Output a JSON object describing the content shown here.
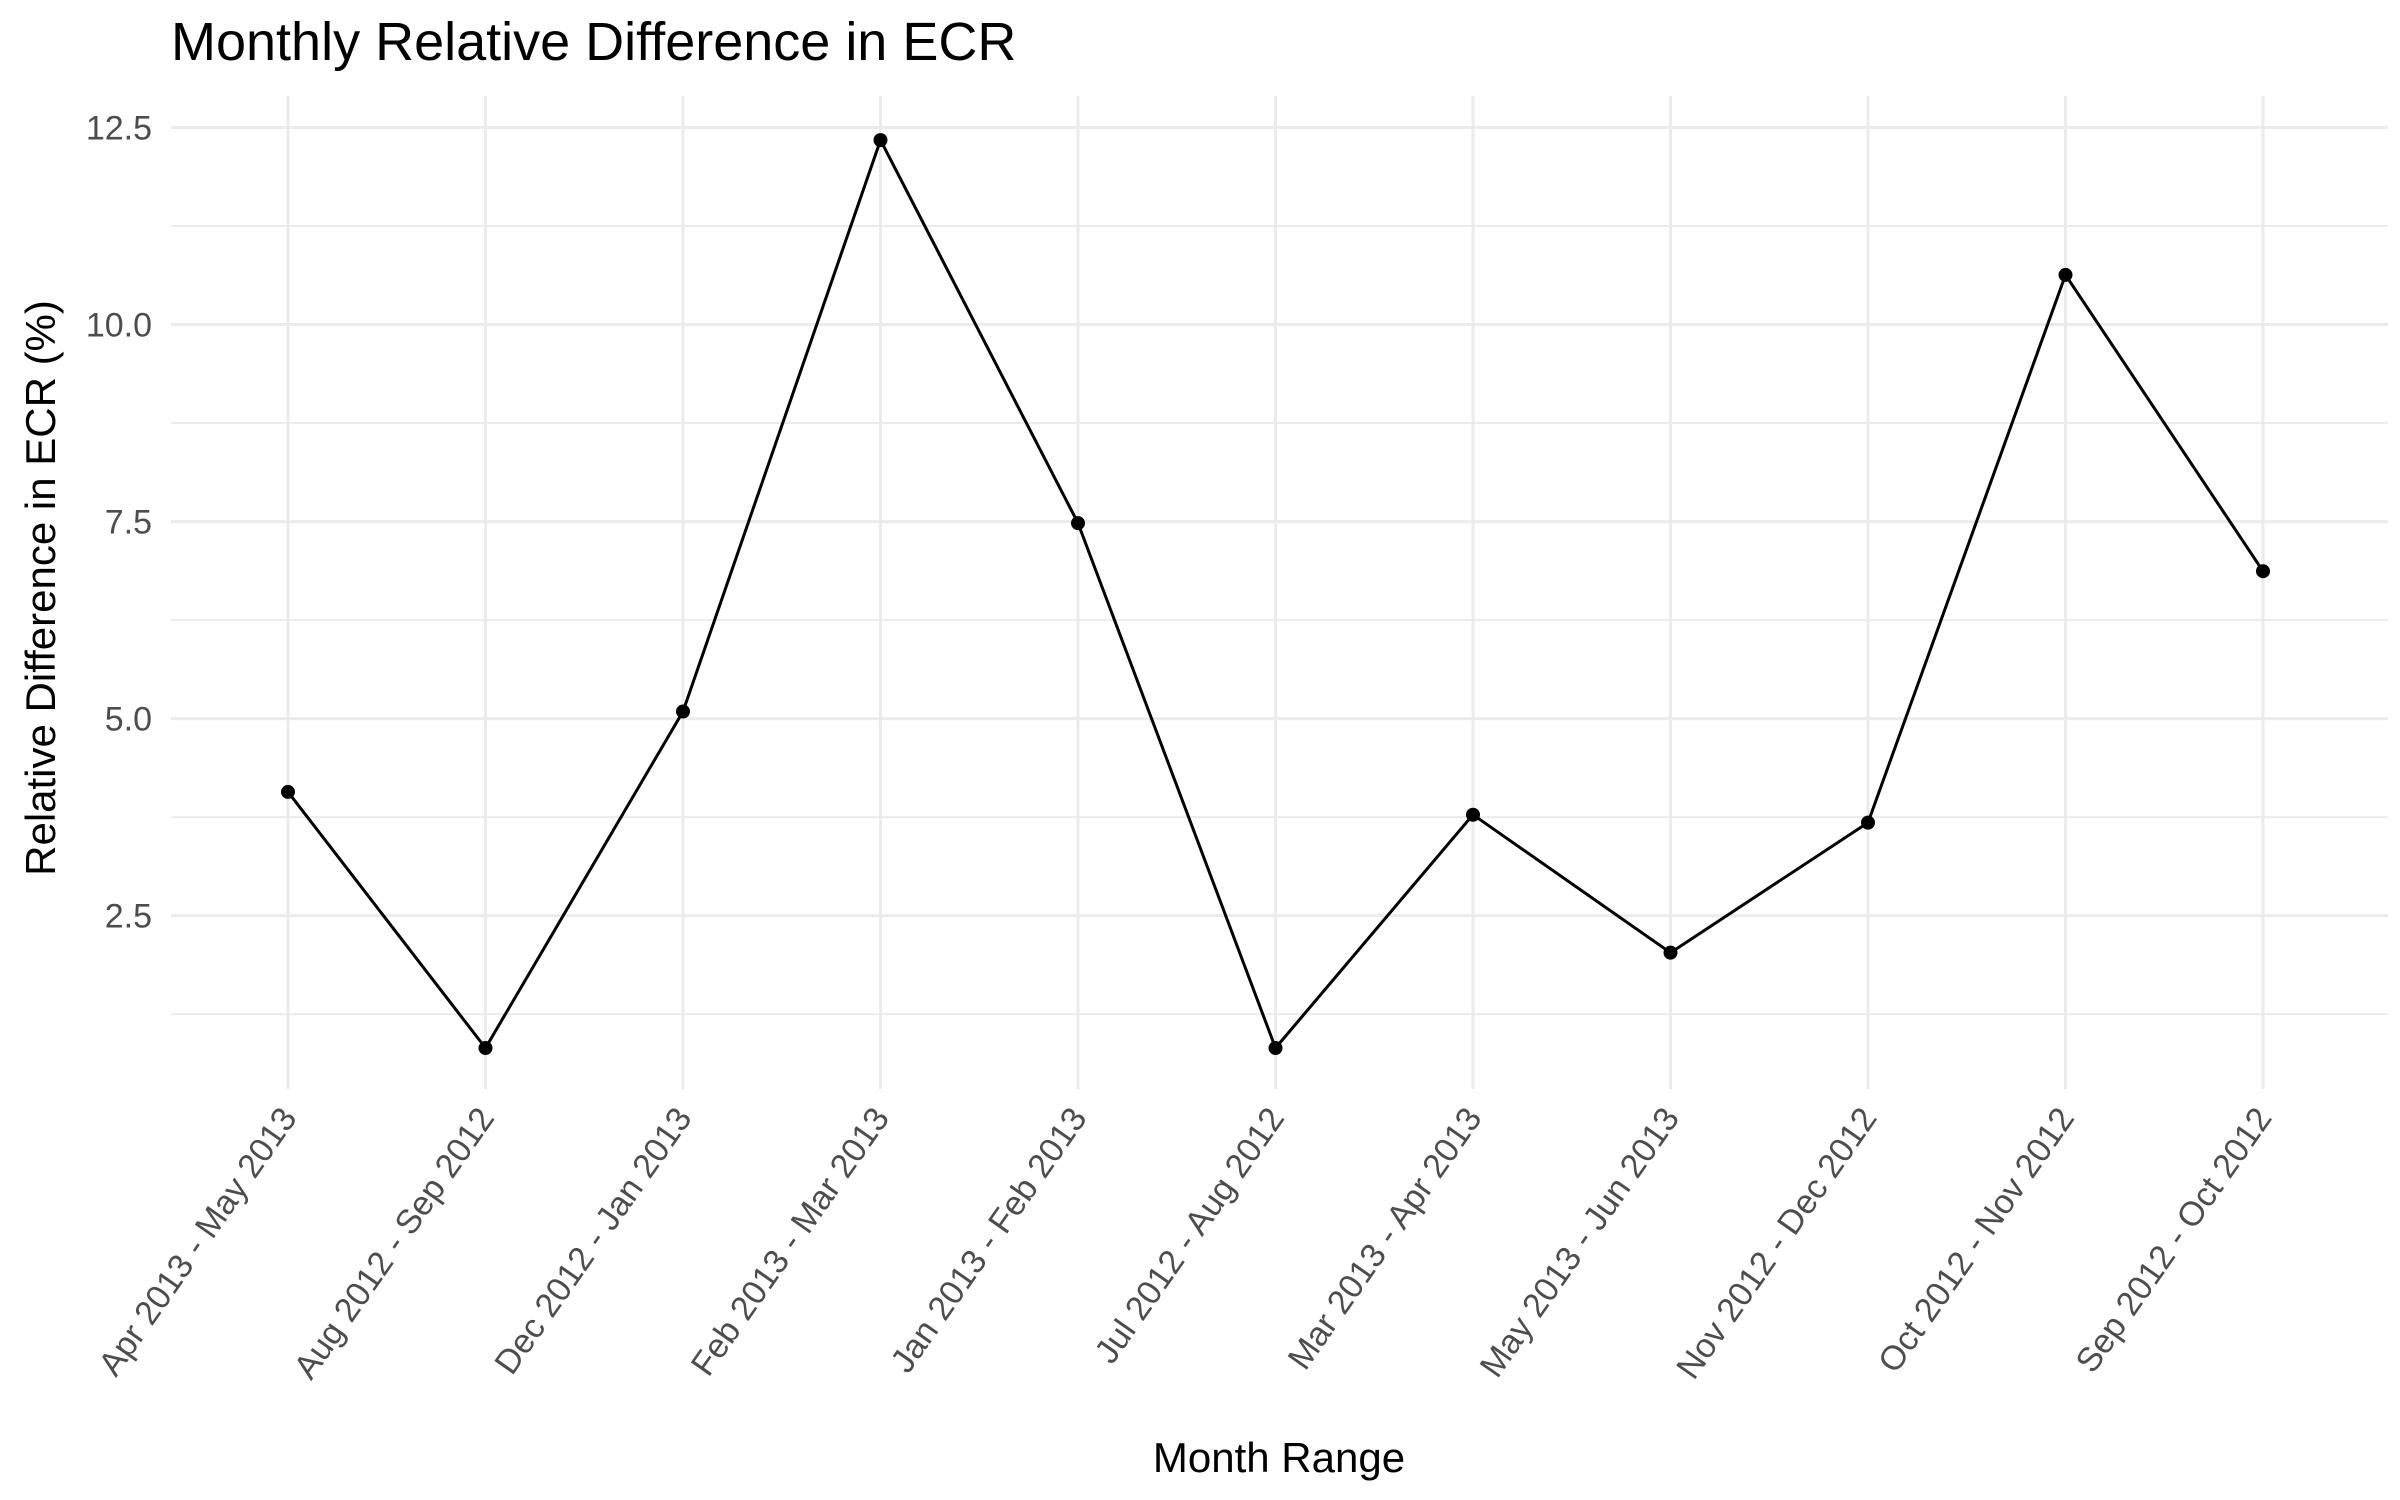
{
  "chart_data": {
    "type": "line",
    "title": "Monthly Relative Difference in ECR",
    "xlabel": "Month Range",
    "ylabel": "Relative Difference in ECR (%)",
    "categories": [
      "Apr 2013 - May 2013",
      "Aug 2012 - Sep 2012",
      "Dec 2012 - Jan 2013",
      "Feb 2013 - Mar 2013",
      "Jan 2013 - Feb 2013",
      "Jul 2012 - Aug 2012",
      "Mar 2013 - Apr 2013",
      "May 2013 - Jun 2013",
      "Nov 2012 - Dec 2012",
      "Oct 2012 - Nov 2012",
      "Sep 2012 - Oct 2012"
    ],
    "series": [
      {
        "values": [
          4.07,
          0.82,
          5.09,
          12.34,
          7.48,
          0.82,
          3.78,
          2.03,
          3.68,
          10.63,
          6.87
        ]
      }
    ],
    "yticks": [
      2.5,
      5.0,
      7.5,
      10.0,
      12.5
    ],
    "ytick_labels": [
      "2.5",
      "5.0",
      "7.5",
      "10.0",
      "12.5"
    ],
    "ylim": [
      0.3,
      12.9
    ],
    "grid": true,
    "legend": "none",
    "colors": {
      "line": "#000000",
      "point": "#000000",
      "grid": "#ebebeb",
      "tick_text": "#4d4d4d",
      "background": "#ffffff"
    }
  }
}
